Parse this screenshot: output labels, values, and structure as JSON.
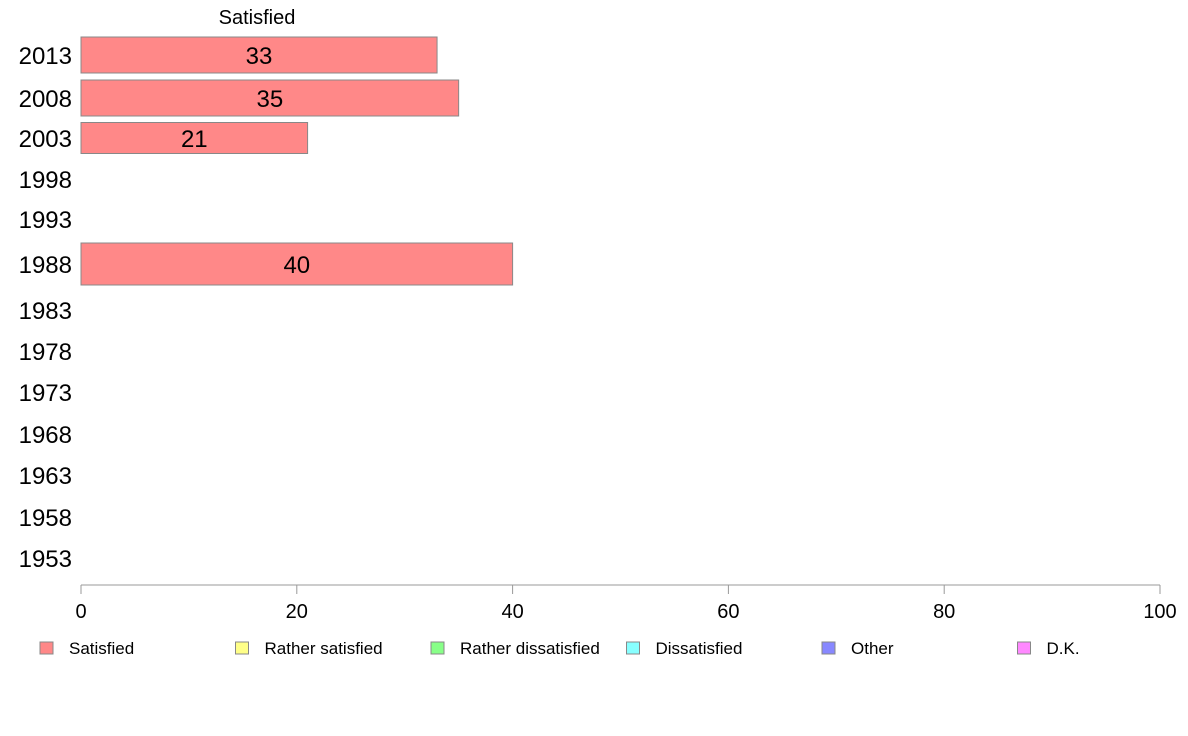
{
  "chart_data": {
    "type": "bar",
    "orientation": "horizontal",
    "stacked": true,
    "column_header": "Satisfied",
    "categories": [
      "2013",
      "2008",
      "2003",
      "1998",
      "1993",
      "1988",
      "1983",
      "1978",
      "1973",
      "1968",
      "1963",
      "1958",
      "1953"
    ],
    "series": [
      {
        "name": "Satisfied",
        "color": "#ff8888",
        "values": [
          33,
          35,
          21,
          null,
          null,
          40,
          null,
          null,
          null,
          null,
          null,
          null,
          null
        ],
        "labels": [
          "33",
          "35",
          "21",
          "",
          "",
          "40",
          "",
          "",
          "",
          "",
          "",
          "",
          ""
        ]
      },
      {
        "name": "Rather satisfied",
        "color": "#ffff88",
        "values": [
          null,
          null,
          null,
          null,
          null,
          null,
          null,
          null,
          null,
          null,
          null,
          null,
          null
        ]
      },
      {
        "name": "Rather dissatisfied",
        "color": "#88ff88",
        "values": [
          null,
          null,
          null,
          null,
          null,
          null,
          null,
          null,
          null,
          null,
          null,
          null,
          null
        ]
      },
      {
        "name": "Dissatisfied",
        "color": "#88ffff",
        "values": [
          null,
          null,
          null,
          null,
          null,
          null,
          null,
          null,
          null,
          null,
          null,
          null,
          null
        ]
      },
      {
        "name": "Other",
        "color": "#8888ff",
        "values": [
          null,
          null,
          null,
          null,
          null,
          null,
          null,
          null,
          null,
          null,
          null,
          null,
          null
        ]
      },
      {
        "name": "D.K.",
        "color": "#ff88ff",
        "values": [
          null,
          null,
          null,
          null,
          null,
          null,
          null,
          null,
          null,
          null,
          null,
          null,
          null
        ]
      }
    ],
    "xlim": [
      0,
      100
    ],
    "xticks": [
      "0",
      "20",
      "40",
      "60",
      "80",
      "100"
    ],
    "grid": false,
    "legend_position": "bottom"
  }
}
